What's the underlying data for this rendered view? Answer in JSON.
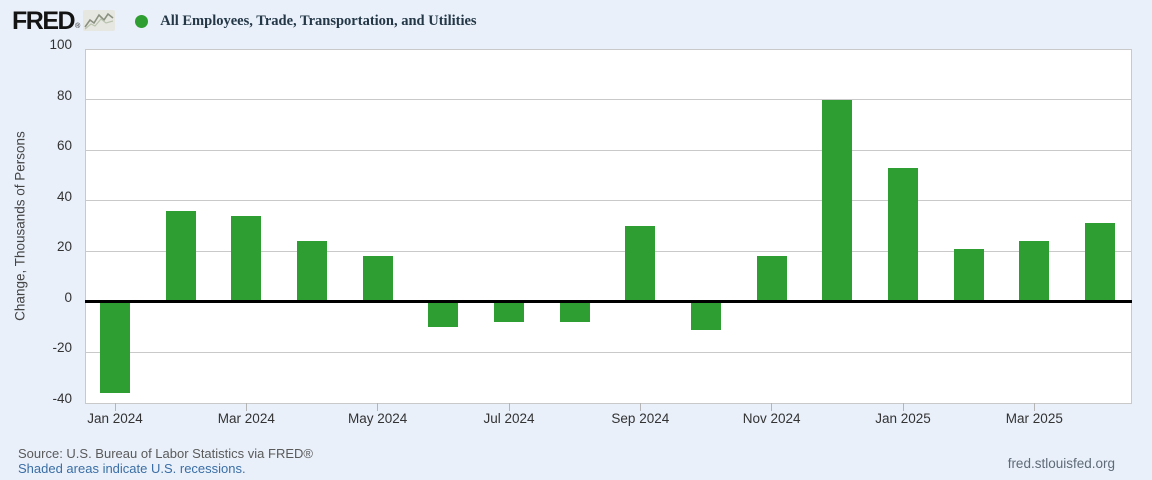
{
  "header": {
    "logo": {
      "text": "FRED",
      "registered": "®"
    },
    "legend_dot_color": "#2f9e32",
    "title": "All Employees, Trade, Transportation, and Utilities"
  },
  "chart_data": {
    "type": "bar",
    "title": "All Employees, Trade, Transportation, and Utilities",
    "xlabel": "",
    "ylabel": "Change, Thousands of Persons",
    "ylim": [
      -40,
      100
    ],
    "yticks": [
      100,
      80,
      60,
      40,
      20,
      0,
      -20,
      -40
    ],
    "grid": true,
    "legend_position": "top-left",
    "bar_color": "#2f9e32",
    "zero_line_color": "#000000",
    "xtick_every": 2,
    "categories": [
      "Jan 2024",
      "Feb 2024",
      "Mar 2024",
      "Apr 2024",
      "May 2024",
      "Jun 2024",
      "Jul 2024",
      "Aug 2024",
      "Sep 2024",
      "Oct 2024",
      "Nov 2024",
      "Dec 2024",
      "Jan 2025",
      "Feb 2025",
      "Mar 2025",
      "Apr 2025"
    ],
    "values": [
      -36,
      36,
      34,
      24,
      18,
      -10,
      -8,
      -8,
      30,
      -11,
      18,
      80,
      53,
      21,
      24,
      31
    ]
  },
  "footer": {
    "source": "Source: U.S. Bureau of Labor Statistics via FRED®",
    "recessions_note": "Shaded areas indicate U.S. recessions.",
    "site": "fred.stlouisfed.org"
  }
}
